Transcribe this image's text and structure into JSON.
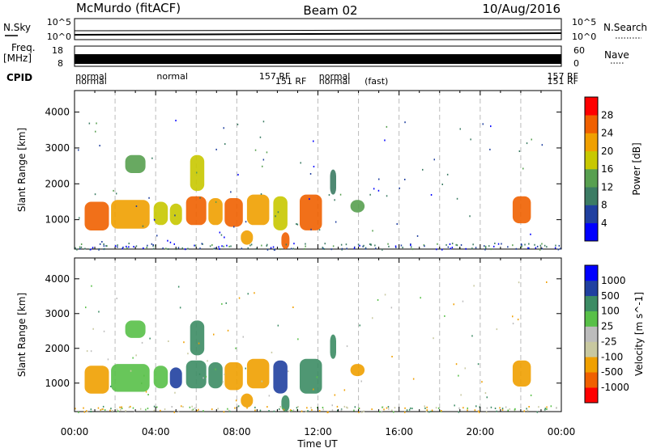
{
  "header": {
    "station": "McMurdo (fitACF)",
    "beam": "Beam 02",
    "date": "10/Aug/2016"
  },
  "noise_panel": {
    "left_label": "N.Sky",
    "right_label": "N.Search",
    "left_ticks": [
      "10^5",
      "10^0"
    ],
    "right_ticks": [
      "10^5",
      "10^0"
    ]
  },
  "freq_panel": {
    "left_label_line1": "Freq.",
    "left_label_line2": "[MHz]",
    "right_label": "Nave",
    "left_ticks": [
      "18",
      "8"
    ],
    "right_ticks": [
      "60",
      "0"
    ],
    "cpid_label": "CPID"
  },
  "cpid": {
    "row1": [
      {
        "text": "normal",
        "hour": 0.05
      },
      {
        "text": "normal",
        "hour": 4.05
      },
      {
        "text": "157 RF",
        "hour": 9.1
      },
      {
        "text": "normal",
        "hour": 12.05
      },
      {
        "text": "157 RF",
        "hour": 23.3
      }
    ],
    "row2": [
      {
        "text": "normal",
        "hour": 0.05
      },
      {
        "text": "151 RF",
        "hour": 9.9
      },
      {
        "text": "normal",
        "hour": 12.05
      },
      {
        "text": "(fast)",
        "hour": 14.3
      },
      {
        "text": "151 RF",
        "hour": 23.3
      }
    ]
  },
  "xaxis": {
    "label": "Time UT",
    "ticks": [
      "00:00",
      "04:00",
      "08:00",
      "12:00",
      "16:00",
      "20:00",
      "00:00"
    ]
  },
  "chart_data": [
    {
      "type": "heatmap",
      "name": "power",
      "title": "",
      "xlabel": "Time UT",
      "ylabel": "Slant Range [km]",
      "xlim": [
        0,
        24
      ],
      "ylim": [
        180,
        4600
      ],
      "yticks": [
        1000,
        2000,
        3000,
        4000
      ],
      "colorbar": {
        "label": "Power [dB]",
        "min": 0,
        "max": 32,
        "ticks": [
          4,
          8,
          12,
          16,
          20,
          24,
          28
        ],
        "colors": [
          "#0000ff",
          "#2040a0",
          "#3c7c64",
          "#58a050",
          "#c8c800",
          "#f0a000",
          "#f06000",
          "#ff0000"
        ]
      },
      "regions": [
        {
          "t0": 0.5,
          "t1": 1.7,
          "r0": 700,
          "r1": 1500,
          "value": 25
        },
        {
          "t0": 1.8,
          "t1": 3.7,
          "r0": 750,
          "r1": 1550,
          "value": 22
        },
        {
          "t0": 3.9,
          "t1": 4.6,
          "r0": 850,
          "r1": 1500,
          "value": 18
        },
        {
          "t0": 4.7,
          "t1": 5.3,
          "r0": 850,
          "r1": 1450,
          "value": 17
        },
        {
          "t0": 5.5,
          "t1": 6.5,
          "r0": 850,
          "r1": 1650,
          "value": 25
        },
        {
          "t0": 6.6,
          "t1": 7.3,
          "r0": 850,
          "r1": 1600,
          "value": 20
        },
        {
          "t0": 7.4,
          "t1": 8.3,
          "r0": 800,
          "r1": 1600,
          "value": 24
        },
        {
          "t0": 8.5,
          "t1": 9.6,
          "r0": 850,
          "r1": 1700,
          "value": 23
        },
        {
          "t0": 9.8,
          "t1": 10.5,
          "r0": 700,
          "r1": 1650,
          "value": 18
        },
        {
          "t0": 11.1,
          "t1": 12.2,
          "r0": 700,
          "r1": 1700,
          "value": 27
        },
        {
          "t0": 13.6,
          "t1": 14.3,
          "r0": 1200,
          "r1": 1550,
          "value": 15
        },
        {
          "t0": 21.6,
          "t1": 22.5,
          "r0": 900,
          "r1": 1650,
          "value": 25
        },
        {
          "t0": 5.7,
          "t1": 6.4,
          "r0": 1800,
          "r1": 2800,
          "value": 17
        },
        {
          "t0": 2.5,
          "t1": 3.5,
          "r0": 2300,
          "r1": 2800,
          "value": 12
        },
        {
          "t0": 8.2,
          "t1": 8.8,
          "r0": 300,
          "r1": 700,
          "value": 22
        },
        {
          "t0": 10.2,
          "t1": 10.6,
          "r0": 180,
          "r1": 650,
          "value": 24
        },
        {
          "t0": 12.6,
          "t1": 12.9,
          "r0": 1700,
          "r1": 2400,
          "value": 10
        }
      ]
    },
    {
      "type": "heatmap",
      "name": "velocity",
      "title": "",
      "xlabel": "Time UT",
      "ylabel": "Slant Range [km]",
      "xlim": [
        0,
        24
      ],
      "ylim": [
        180,
        4600
      ],
      "yticks": [
        1000,
        2000,
        3000,
        4000
      ],
      "colorbar": {
        "label": "Velocity [m s^-1]",
        "ticks": [
          -1000,
          -500,
          -100,
          -25,
          25,
          100,
          500,
          1000
        ],
        "colors": [
          "#ff0000",
          "#f06000",
          "#f0a000",
          "#c8c8a0",
          "#bcbcbc",
          "#58c048",
          "#3c8c64",
          "#2040a0",
          "#0000ff"
        ]
      },
      "regions": [
        {
          "t0": 0.5,
          "t1": 1.7,
          "r0": 700,
          "r1": 1500,
          "value": -150
        },
        {
          "t0": 1.8,
          "t1": 3.7,
          "r0": 750,
          "r1": 1550,
          "value": 100
        },
        {
          "t0": 3.9,
          "t1": 4.6,
          "r0": 850,
          "r1": 1500,
          "value": 100
        },
        {
          "t0": 4.7,
          "t1": 5.3,
          "r0": 850,
          "r1": 1450,
          "value": 800
        },
        {
          "t0": 5.5,
          "t1": 6.5,
          "r0": 850,
          "r1": 1650,
          "value": 200
        },
        {
          "t0": 6.6,
          "t1": 7.3,
          "r0": 850,
          "r1": 1600,
          "value": 300
        },
        {
          "t0": 7.4,
          "t1": 8.3,
          "r0": 800,
          "r1": 1600,
          "value": -120
        },
        {
          "t0": 8.5,
          "t1": 9.6,
          "r0": 850,
          "r1": 1700,
          "value": -200
        },
        {
          "t0": 9.8,
          "t1": 10.5,
          "r0": 700,
          "r1": 1650,
          "value": 900
        },
        {
          "t0": 11.1,
          "t1": 12.2,
          "r0": 700,
          "r1": 1700,
          "value": 150
        },
        {
          "t0": 13.6,
          "t1": 14.3,
          "r0": 1200,
          "r1": 1550,
          "value": -300
        },
        {
          "t0": 21.6,
          "t1": 22.5,
          "r0": 900,
          "r1": 1650,
          "value": -300
        },
        {
          "t0": 5.7,
          "t1": 6.4,
          "r0": 1800,
          "r1": 2800,
          "value": 200
        },
        {
          "t0": 2.5,
          "t1": 3.5,
          "r0": 2300,
          "r1": 2800,
          "value": 80
        },
        {
          "t0": 8.2,
          "t1": 8.8,
          "r0": 300,
          "r1": 700,
          "value": -150
        },
        {
          "t0": 10.2,
          "t1": 10.6,
          "r0": 180,
          "r1": 650,
          "value": 200
        },
        {
          "t0": 12.6,
          "t1": 12.9,
          "r0": 1700,
          "r1": 2400,
          "value": 120
        }
      ]
    }
  ]
}
